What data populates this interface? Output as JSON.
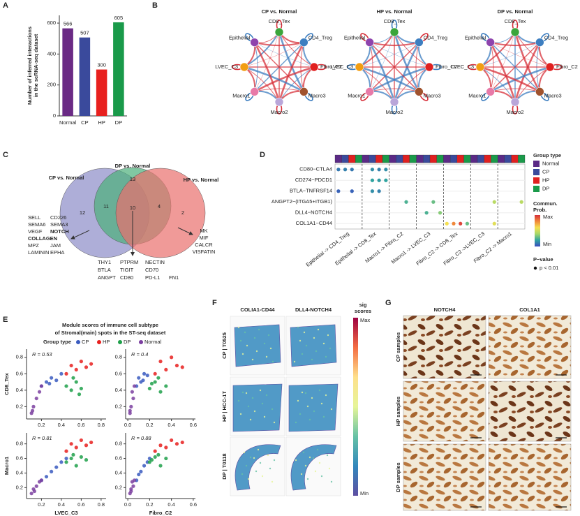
{
  "panel_labels": [
    "A",
    "B",
    "C",
    "D",
    "E",
    "F",
    "G"
  ],
  "chart_data": [
    {
      "type": "bar",
      "ylabel": [
        "Number of inferred interactions",
        "in the scRNA-seq dataset"
      ],
      "categories": [
        "Normal",
        "CP",
        "HP",
        "DP"
      ],
      "values": [
        566,
        507,
        300,
        605
      ],
      "colors": [
        "#6a2a85",
        "#3a4a9c",
        "#e8201e",
        "#1a9a4a"
      ],
      "ylim": [
        0,
        650
      ],
      "yticks": [
        0,
        200,
        400,
        600
      ]
    },
    {
      "type": "dot",
      "rows": [
        "CD80−CTLA4",
        "CD274−PDCD1",
        "BTLA−TNFRSF14",
        "ANGPT2−(ITGA5+ITGB1)",
        "DLL4−NOTCH4",
        "COL1A1−CD44"
      ],
      "column_groups": [
        "Epithelial -> CD4_Treg",
        "Epithelial -> CD8_Tex",
        "Macro1 -> Fibro_C2",
        "Macro1 -> LVEC_C3",
        "Fibro_C2 -> CD8_Tex",
        "Fibro_C2 ->LVEC_C3",
        "Fibro_C2 -> Macro1"
      ],
      "group_types": [
        {
          "name": "Normal",
          "color": "#5b2a86"
        },
        {
          "name": "CP",
          "color": "#3a4a9c"
        },
        {
          "name": "HP",
          "color": "#e02020"
        },
        {
          "name": "DP",
          "color": "#1a9a4a"
        }
      ],
      "points": [
        {
          "row": 0,
          "col": 0,
          "value": 0.1
        },
        {
          "row": 0,
          "col": 1,
          "value": 0.12
        },
        {
          "row": 0,
          "col": 2,
          "value": 0.1
        },
        {
          "row": 0,
          "col": 5,
          "value": 0.15
        },
        {
          "row": 0,
          "col": 6,
          "value": 0.12
        },
        {
          "row": 0,
          "col": 7,
          "value": 0.15
        },
        {
          "row": 1,
          "col": 5,
          "value": 0.2
        },
        {
          "row": 1,
          "col": 6,
          "value": 0.18
        },
        {
          "row": 1,
          "col": 7,
          "value": 0.2
        },
        {
          "row": 2,
          "col": 0,
          "value": 0.05
        },
        {
          "row": 2,
          "col": 2,
          "value": 0.05
        },
        {
          "row": 2,
          "col": 5,
          "value": 0.15
        },
        {
          "row": 2,
          "col": 6,
          "value": 0.12
        },
        {
          "row": 3,
          "col": 10,
          "value": 0.25
        },
        {
          "row": 3,
          "col": 14,
          "value": 0.3
        },
        {
          "row": 3,
          "col": 23,
          "value": 0.45
        },
        {
          "row": 3,
          "col": 27,
          "value": 0.45
        },
        {
          "row": 4,
          "col": 13,
          "value": 0.25
        },
        {
          "row": 4,
          "col": 15,
          "value": 0.35
        },
        {
          "row": 5,
          "col": 16,
          "value": 0.6
        },
        {
          "row": 5,
          "col": 17,
          "value": 0.8
        },
        {
          "row": 5,
          "col": 18,
          "value": 0.95
        },
        {
          "row": 5,
          "col": 19,
          "value": 0.3
        },
        {
          "row": 5,
          "col": 23,
          "value": 0.55
        }
      ],
      "colorscale": [
        "#3b4cc0",
        "#2fa4a0",
        "#a5d86a",
        "#f5e050",
        "#f0883a",
        "#d7303a"
      ],
      "clim": [
        0,
        1
      ],
      "legend": {
        "group_title": "Group type",
        "prob_title": [
          "Commun.",
          "Prob."
        ],
        "max": "Max",
        "min": "Min",
        "p_title": "P−value",
        "p_label": "p < 0.01"
      }
    },
    {
      "type": "scatter",
      "ylabel": "CD8_Tex",
      "annotation": "R = 0.53",
      "xlim": [
        0.05,
        0.85
      ],
      "ylim": [
        0.05,
        0.9
      ],
      "xticks": [
        0.2,
        0.4,
        0.6,
        0.8
      ],
      "yticks": [
        0.2,
        0.4,
        0.6,
        0.8
      ],
      "series": [
        {
          "color": "#3a5bbf",
          "x": [
            0.2,
            0.25,
            0.3,
            0.35,
            0.4,
            0.28
          ],
          "values": [
            0.45,
            0.5,
            0.55,
            0.52,
            0.6,
            0.48
          ]
        },
        {
          "color": "#e8201e",
          "x": [
            0.45,
            0.5,
            0.55,
            0.6,
            0.65,
            0.7
          ],
          "values": [
            0.6,
            0.7,
            0.65,
            0.75,
            0.68,
            0.72
          ]
        },
        {
          "color": "#1fa04a",
          "x": [
            0.45,
            0.5,
            0.55,
            0.6,
            0.52,
            0.58
          ],
          "values": [
            0.45,
            0.4,
            0.5,
            0.42,
            0.55,
            0.35
          ]
        },
        {
          "color": "#7b3fa0",
          "x": [
            0.1,
            0.12,
            0.15,
            0.18,
            0.2,
            0.11
          ],
          "values": [
            0.12,
            0.2,
            0.3,
            0.38,
            0.45,
            0.15
          ]
        }
      ]
    },
    {
      "type": "scatter",
      "annotation": "R = 0.4",
      "xlim": [
        -0.02,
        0.62
      ],
      "ylim": [
        0.05,
        0.9
      ],
      "xticks": [
        {
          "value": 0,
          "label": "0.0"
        },
        0.2,
        0.4,
        0.6
      ],
      "yticks": [
        0.2,
        0.4,
        0.6,
        0.8
      ],
      "series": [
        {
          "color": "#3a5bbf",
          "x": [
            0.08,
            0.1,
            0.12,
            0.15,
            0.18,
            0.14
          ],
          "values": [
            0.45,
            0.55,
            0.5,
            0.6,
            0.58,
            0.52
          ]
        },
        {
          "color": "#e8201e",
          "x": [
            0.25,
            0.3,
            0.35,
            0.4,
            0.45,
            0.5
          ],
          "values": [
            0.6,
            0.75,
            0.65,
            0.8,
            0.7,
            0.68
          ]
        },
        {
          "color": "#1fa04a",
          "x": [
            0.2,
            0.25,
            0.3,
            0.28,
            0.35,
            0.22
          ],
          "values": [
            0.42,
            0.5,
            0.38,
            0.55,
            0.45,
            0.48
          ]
        },
        {
          "color": "#7b3fa0",
          "x": [
            0.02,
            0.03,
            0.05,
            0.04,
            0.06,
            0.02
          ],
          "values": [
            0.12,
            0.2,
            0.3,
            0.38,
            0.45,
            0.15
          ]
        }
      ]
    },
    {
      "type": "scatter",
      "ylabel": "Macro1",
      "xlabel": "LVEC_C3",
      "annotation": "R = 0.81",
      "xlim": [
        0.05,
        0.85
      ],
      "ylim": [
        0.05,
        0.95
      ],
      "xticks": [
        0.2,
        0.4,
        0.6,
        0.8
      ],
      "yticks": [
        0.2,
        0.4,
        0.6,
        0.8
      ],
      "series": [
        {
          "color": "#3a5bbf",
          "x": [
            0.2,
            0.25,
            0.3,
            0.35,
            0.4,
            0.45
          ],
          "values": [
            0.3,
            0.35,
            0.42,
            0.48,
            0.55,
            0.6
          ]
        },
        {
          "color": "#e8201e",
          "x": [
            0.45,
            0.5,
            0.55,
            0.6,
            0.65,
            0.7
          ],
          "values": [
            0.7,
            0.8,
            0.75,
            0.85,
            0.78,
            0.82
          ]
        },
        {
          "color": "#1fa04a",
          "x": [
            0.45,
            0.5,
            0.55,
            0.6,
            0.65,
            0.52
          ],
          "values": [
            0.55,
            0.6,
            0.5,
            0.62,
            0.58,
            0.65
          ]
        },
        {
          "color": "#7b3fa0",
          "x": [
            0.1,
            0.12,
            0.15,
            0.18,
            0.2,
            0.13
          ],
          "values": [
            0.12,
            0.18,
            0.22,
            0.28,
            0.3,
            0.15
          ]
        }
      ]
    },
    {
      "type": "scatter",
      "xlabel": "Fibro_C2",
      "annotation": "R = 0.88",
      "xlim": [
        -0.02,
        0.62
      ],
      "ylim": [
        0.05,
        0.95
      ],
      "xticks": [
        {
          "value": 0,
          "label": "0.0"
        },
        0.2,
        0.4,
        0.6
      ],
      "yticks": [
        0.2,
        0.4,
        0.6,
        0.8
      ],
      "series": [
        {
          "color": "#3a5bbf",
          "x": [
            0.08,
            0.1,
            0.12,
            0.15,
            0.18,
            0.2
          ],
          "values": [
            0.3,
            0.38,
            0.42,
            0.5,
            0.55,
            0.6
          ]
        },
        {
          "color": "#e8201e",
          "x": [
            0.25,
            0.3,
            0.35,
            0.4,
            0.45,
            0.5
          ],
          "values": [
            0.7,
            0.78,
            0.75,
            0.85,
            0.8,
            0.82
          ]
        },
        {
          "color": "#1fa04a",
          "x": [
            0.2,
            0.25,
            0.3,
            0.28,
            0.35,
            0.22
          ],
          "values": [
            0.55,
            0.62,
            0.5,
            0.65,
            0.6,
            0.58
          ]
        },
        {
          "color": "#7b3fa0",
          "x": [
            0.02,
            0.03,
            0.05,
            0.04,
            0.06,
            0.03
          ],
          "values": [
            0.12,
            0.18,
            0.22,
            0.28,
            0.3,
            0.15
          ]
        }
      ]
    }
  ],
  "network": {
    "edge_colors": [
      "#d7303a",
      "#3d7ec0"
    ],
    "titles": [
      "CP vs. Normal",
      "HP vs. Normal",
      "DP vs. Normal"
    ],
    "nodes": [
      {
        "name": "CD8_Tex",
        "color": "#3aa53a"
      },
      {
        "name": "CD4_Treg",
        "color": "#3d7ec0"
      },
      {
        "name": "Fibro_C2",
        "color": "#e02020"
      },
      {
        "name": "Macro3",
        "color": "#a0522d"
      },
      {
        "name": "Macro2",
        "color": "#b9a6d9"
      },
      {
        "name": "Macro1",
        "color": "#e87aa8"
      },
      {
        "name": "LVEC_C3",
        "color": "#f29d12"
      },
      {
        "name": "Epithelial",
        "color": "#8e44ad"
      }
    ]
  },
  "venn": {
    "sets": [
      {
        "label": "CP vs. Normal",
        "color": "#8c8cc8"
      },
      {
        "label": "DP vs. Normal",
        "color": "#4caf7a"
      },
      {
        "label": "HP vs. Normal",
        "color": "#ea6f6c"
      }
    ],
    "counts": {
      "cp_only": 12,
      "dp_only": 13,
      "hp_only": 2,
      "cp_dp": 11,
      "dp_hp": 4,
      "all": 10
    },
    "highlight_color": "#e02020",
    "left_list": [
      [
        {
          "text": "SELL"
        },
        {
          "text": "CD226"
        }
      ],
      [
        {
          "text": "SEMA6"
        },
        {
          "text": "SEMA3"
        }
      ],
      [
        {
          "text": "VEGF"
        },
        {
          "text": "NOTCH",
          "highlight": true
        }
      ],
      [
        {
          "text": "COLLAGEN",
          "highlight": true
        }
      ],
      [
        {
          "text": "MPZ"
        },
        {
          "text": "JAM"
        }
      ],
      [
        {
          "text": "LAMININ"
        },
        {
          "text": "EPHA"
        }
      ]
    ],
    "right_list": [
      "MK",
      "MIF",
      "CALCR",
      "VISFATIN"
    ],
    "bottom_list": [
      [
        "THY1",
        "PTPRM",
        "NECTIN"
      ],
      [
        "BTLA",
        "TIGIT",
        "CD70"
      ],
      [
        "ANGPT",
        "CD80",
        "PD-L1",
        "FN1"
      ]
    ]
  },
  "module_panel": {
    "title": [
      "Module scores of immune cell subtype",
      "of Stromal(main) spots in the ST-seq dataset"
    ],
    "legend_title": "Group type",
    "groups": [
      {
        "name": "CP",
        "color": "#3a5bbf"
      },
      {
        "name": "HP",
        "color": "#e8201e"
      },
      {
        "name": "DP",
        "color": "#1fa04a"
      },
      {
        "name": "Normal",
        "color": "#7b3fa0"
      }
    ]
  },
  "spatial": {
    "columns": [
      "COLIA1-CD44",
      "DLL4-NOTCH4"
    ],
    "rows": [
      "CP | T0525",
      "HP | HCC-1T",
      "DP | T0118"
    ],
    "colorbar_title": [
      "sig",
      "scores"
    ],
    "max": "Max",
    "min": "Min",
    "colors": [
      "#9e0142",
      "#f46d43",
      "#fee08b",
      "#e6f598",
      "#66c2a5",
      "#3288bd",
      "#5e4fa2"
    ]
  },
  "ihc": {
    "columns": [
      "NOTCH4",
      "COL1A1"
    ],
    "rows": [
      "CP samples",
      "HP samples",
      "DP samples"
    ]
  }
}
